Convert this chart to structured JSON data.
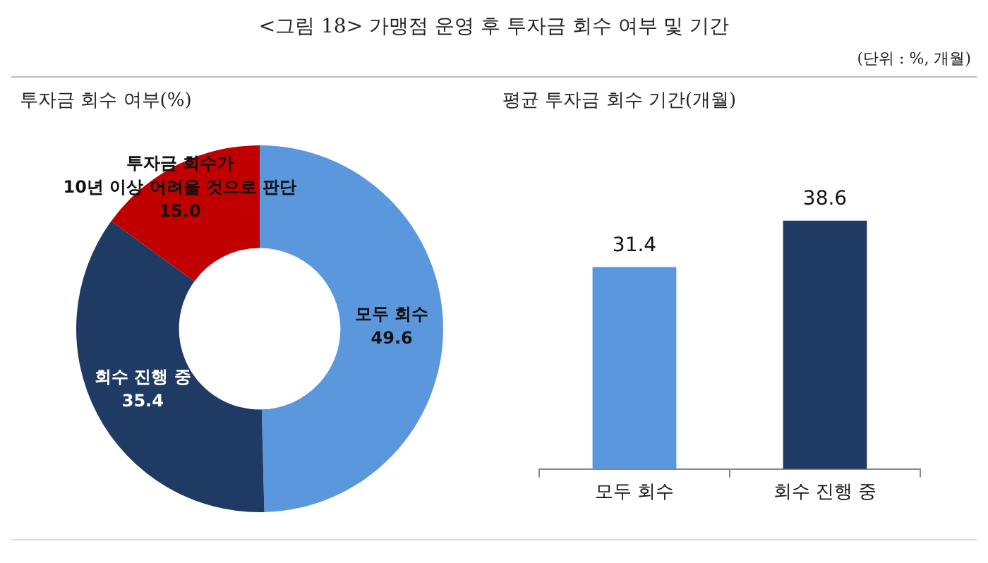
{
  "chart_data": [
    {
      "type": "donut",
      "title": "<그림 18> 가맹점 운영 후 투자금 회수 여부 및 기간",
      "subtitle": "투자금 회수 여부(%)",
      "annotations": [
        "(단위 : %, 개월)"
      ],
      "categories": [
        "모두 회수",
        "회수 진행 중",
        "투자금 회수가\n10년 이상 어려울 것으로 판단"
      ],
      "values": [
        49.6,
        35.4,
        15.0
      ],
      "value_labels": [
        "49.6",
        "35.4",
        "15.0"
      ],
      "colors": [
        "#5b97dc",
        "#1f3b64",
        "#c00000"
      ],
      "data_labels": true,
      "legend": false
    },
    {
      "type": "bar",
      "title": "평균 투자금 회수 기간(개월)",
      "categories": [
        "모두 회수",
        "회수 진행 중"
      ],
      "values": [
        31.4,
        38.6
      ],
      "colors": [
        "#5b97dc",
        "#1f3b64"
      ],
      "data_labels": true,
      "legend": false,
      "tick_labels": "x"
    }
  ]
}
